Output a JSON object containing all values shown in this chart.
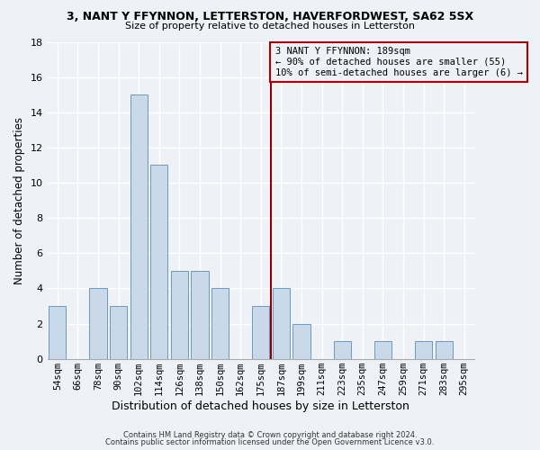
{
  "title": "3, NANT Y FFYNNON, LETTERSTON, HAVERFORDWEST, SA62 5SX",
  "subtitle": "Size of property relative to detached houses in Letterston",
  "xlabel": "Distribution of detached houses by size in Letterston",
  "ylabel": "Number of detached properties",
  "bar_labels": [
    "54sqm",
    "66sqm",
    "78sqm",
    "90sqm",
    "102sqm",
    "114sqm",
    "126sqm",
    "138sqm",
    "150sqm",
    "162sqm",
    "175sqm",
    "187sqm",
    "199sqm",
    "211sqm",
    "223sqm",
    "235sqm",
    "247sqm",
    "259sqm",
    "271sqm",
    "283sqm",
    "295sqm"
  ],
  "bar_values": [
    3,
    0,
    4,
    3,
    15,
    11,
    5,
    5,
    4,
    0,
    3,
    4,
    2,
    0,
    1,
    0,
    1,
    0,
    1,
    1,
    0
  ],
  "bar_color": "#c9d9ea",
  "bar_edge_color": "#5b8db8",
  "ylim": [
    0,
    18
  ],
  "yticks": [
    0,
    2,
    4,
    6,
    8,
    10,
    12,
    14,
    16,
    18
  ],
  "vline_color": "#8b0000",
  "vline_index": 10.5,
  "annotation_text": "3 NANT Y FFYNNON: 189sqm\n← 90% of detached houses are smaller (55)\n10% of semi-detached houses are larger (6) →",
  "annotation_box_color": "#aa0000",
  "footer1": "Contains HM Land Registry data © Crown copyright and database right 2024.",
  "footer2": "Contains public sector information licensed under the Open Government Licence v3.0.",
  "background_color": "#eef2f7",
  "grid_color": "#ffffff",
  "bar_width": 0.85
}
